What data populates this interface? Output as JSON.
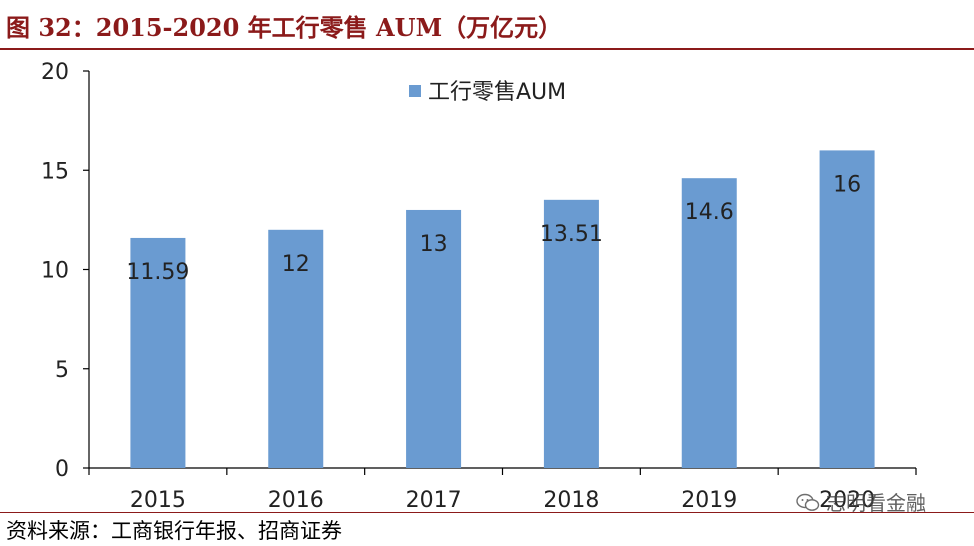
{
  "figure": {
    "title": "图 32：2015-2020 年工行零售 AUM（万亿元）",
    "source": "资料来源：工商银行年报、招商证券",
    "watermark": "志明看金融",
    "watermark_icon": "wechat-icon"
  },
  "colors": {
    "bar": "#6a9bd1",
    "title": "#8b1a1a",
    "axis": "#000000",
    "text": "#222222"
  },
  "chart_data": {
    "type": "bar",
    "categories": [
      "2015",
      "2016",
      "2017",
      "2018",
      "2019",
      "2020"
    ],
    "series": [
      {
        "name": "工行零售AUM",
        "values": [
          11.59,
          12,
          13,
          13.51,
          14.6,
          16
        ]
      }
    ],
    "data_labels": [
      "11.59",
      "12",
      "13",
      "13.51",
      "14.6",
      "16"
    ],
    "ylim": [
      0,
      20
    ],
    "yticks": [
      0,
      5,
      10,
      15,
      20
    ],
    "grid": false,
    "legend_position": "top-center",
    "xlabel": "",
    "ylabel": ""
  }
}
